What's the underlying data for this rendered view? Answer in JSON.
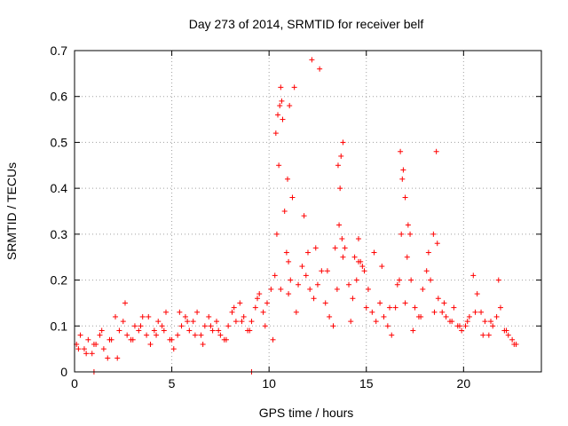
{
  "chart_data": {
    "type": "scatter",
    "title": "Day 273 of 2014, SRMTID for receiver belf",
    "xlabel": "GPS time / hours",
    "ylabel": "SRMTID / TECUs",
    "xlim": [
      0,
      24
    ],
    "ylim": [
      0,
      0.7
    ],
    "xticks": [
      0,
      5,
      10,
      15,
      20
    ],
    "yticks": [
      0,
      0.1,
      0.2,
      0.3,
      0.4,
      0.5,
      0.6,
      0.7
    ],
    "xtick_labels": [
      "0",
      "5",
      "10",
      "15",
      "20"
    ],
    "ytick_labels": [
      "0",
      "0.1",
      "0.2",
      "0.3",
      "0.4",
      "0.5",
      "0.6",
      "0.7"
    ],
    "grid": true,
    "marker": "+",
    "color": "#ff0000",
    "series": [
      {
        "name": "SRMTID",
        "x": [
          0.1,
          0.3,
          0.5,
          0.7,
          0.9,
          1.1,
          1.3,
          1.5,
          1.7,
          1.9,
          2.1,
          2.3,
          2.5,
          2.7,
          2.9,
          3.1,
          3.3,
          3.5,
          3.7,
          3.9,
          4.1,
          4.3,
          4.5,
          4.7,
          4.9,
          5.1,
          5.3,
          5.5,
          5.7,
          5.9,
          6.1,
          6.3,
          6.5,
          6.7,
          6.9,
          7.1,
          7.3,
          7.5,
          7.7,
          7.9,
          8.1,
          8.3,
          8.5,
          8.7,
          8.9,
          9.1,
          9.3,
          9.5,
          9.7,
          9.9,
          10.1,
          10.3,
          10.4,
          10.5,
          10.6,
          10.7,
          10.8,
          10.9,
          11.0,
          11.1,
          11.2,
          11.3,
          11.5,
          11.7,
          11.9,
          12.1,
          12.3,
          12.5,
          12.7,
          12.9,
          13.1,
          13.3,
          13.5,
          13.6,
          13.7,
          13.8,
          13.9,
          14.1,
          14.3,
          14.5,
          14.7,
          14.9,
          15.1,
          15.3,
          15.5,
          15.7,
          15.9,
          16.1,
          16.3,
          16.5,
          16.7,
          16.8,
          16.9,
          17.0,
          17.1,
          17.3,
          17.5,
          17.7,
          17.9,
          18.1,
          18.3,
          18.5,
          18.7,
          18.9,
          19.1,
          19.3,
          19.5,
          19.7,
          19.9,
          20.1,
          20.3,
          20.5,
          20.7,
          20.9,
          21.1,
          21.3,
          21.5,
          21.7,
          21.9,
          22.1,
          22.3,
          22.5,
          22.7,
          0.2,
          0.6,
          1.0,
          1.4,
          1.8,
          2.2,
          2.6,
          3.0,
          3.4,
          3.8,
          4.2,
          4.6,
          5.0,
          5.4,
          5.8,
          6.2,
          6.6,
          7.0,
          7.4,
          7.8,
          8.2,
          8.6,
          9.0,
          9.4,
          9.8,
          10.2,
          10.6,
          11.0,
          11.4,
          11.8,
          12.2,
          12.6,
          13.0,
          13.4,
          13.8,
          14.2,
          14.6,
          15.0,
          15.4,
          15.8,
          16.2,
          16.6,
          17.0,
          17.4,
          17.8,
          18.2,
          18.6,
          19.0,
          19.4,
          19.8,
          20.2,
          20.6,
          21.0,
          21.4,
          21.8,
          22.2,
          22.6,
          10.35,
          10.45,
          10.55,
          10.65,
          10.95,
          11.05,
          13.55,
          13.65,
          13.75,
          16.75,
          16.85,
          17.15,
          17.25,
          18.45,
          18.65,
          14.4,
          14.6,
          14.8,
          12.0,
          12.4,
          9.1,
          1.0
        ],
        "y": [
          0.06,
          0.08,
          0.05,
          0.07,
          0.04,
          0.06,
          0.08,
          0.05,
          0.03,
          0.07,
          0.12,
          0.09,
          0.11,
          0.08,
          0.07,
          0.1,
          0.09,
          0.12,
          0.08,
          0.06,
          0.09,
          0.11,
          0.1,
          0.13,
          0.07,
          0.05,
          0.08,
          0.1,
          0.12,
          0.09,
          0.11,
          0.13,
          0.08,
          0.1,
          0.12,
          0.09,
          0.11,
          0.08,
          0.07,
          0.1,
          0.13,
          0.11,
          0.15,
          0.12,
          0.09,
          0.11,
          0.14,
          0.17,
          0.13,
          0.15,
          0.18,
          0.21,
          0.3,
          0.45,
          0.62,
          0.55,
          0.35,
          0.26,
          0.17,
          0.2,
          0.38,
          0.62,
          0.19,
          0.23,
          0.21,
          0.18,
          0.16,
          0.19,
          0.22,
          0.15,
          0.12,
          0.1,
          0.18,
          0.32,
          0.47,
          0.5,
          0.27,
          0.19,
          0.16,
          0.2,
          0.24,
          0.22,
          0.18,
          0.13,
          0.11,
          0.15,
          0.12,
          0.1,
          0.08,
          0.14,
          0.2,
          0.3,
          0.44,
          0.38,
          0.25,
          0.2,
          0.14,
          0.12,
          0.18,
          0.22,
          0.2,
          0.13,
          0.16,
          0.13,
          0.12,
          0.11,
          0.14,
          0.1,
          0.09,
          0.1,
          0.12,
          0.21,
          0.17,
          0.13,
          0.11,
          0.08,
          0.1,
          0.12,
          0.14,
          0.09,
          0.08,
          0.07,
          0.06,
          0.05,
          0.04,
          0.06,
          0.09,
          0.07,
          0.03,
          0.15,
          0.07,
          0.1,
          0.12,
          0.08,
          0.09,
          0.07,
          0.13,
          0.11,
          0.08,
          0.06,
          0.1,
          0.09,
          0.07,
          0.14,
          0.11,
          0.09,
          0.16,
          0.1,
          0.07,
          0.18,
          0.24,
          0.13,
          0.34,
          0.68,
          0.66,
          0.22,
          0.27,
          0.25,
          0.11,
          0.29,
          0.14,
          0.26,
          0.23,
          0.14,
          0.19,
          0.15,
          0.09,
          0.12,
          0.26,
          0.48,
          0.15,
          0.11,
          0.1,
          0.11,
          0.13,
          0.08,
          0.11,
          0.2,
          0.09,
          0.06,
          0.52,
          0.56,
          0.58,
          0.59,
          0.42,
          0.58,
          0.45,
          0.4,
          0.29,
          0.48,
          0.42,
          0.32,
          0.3,
          0.3,
          0.28,
          0.25,
          0.24,
          0.23,
          0.26,
          0.27,
          0.0,
          0.0
        ]
      }
    ]
  }
}
